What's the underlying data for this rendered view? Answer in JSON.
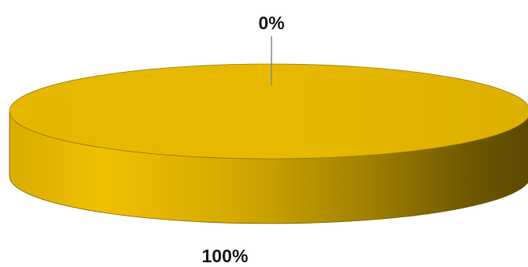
{
  "chart_data": {
    "type": "pie",
    "variant": "3d",
    "slices": [
      {
        "value": 100,
        "label": "100%",
        "color": "#E8B800"
      },
      {
        "value": 0,
        "label": "0%",
        "color": "#E8B800"
      }
    ],
    "legend": "none"
  },
  "colors": {
    "top_face": "#E8B800",
    "side_light": "#F0C000",
    "side_dark": "#5C4800",
    "leader_line": "#8a8a8a"
  }
}
